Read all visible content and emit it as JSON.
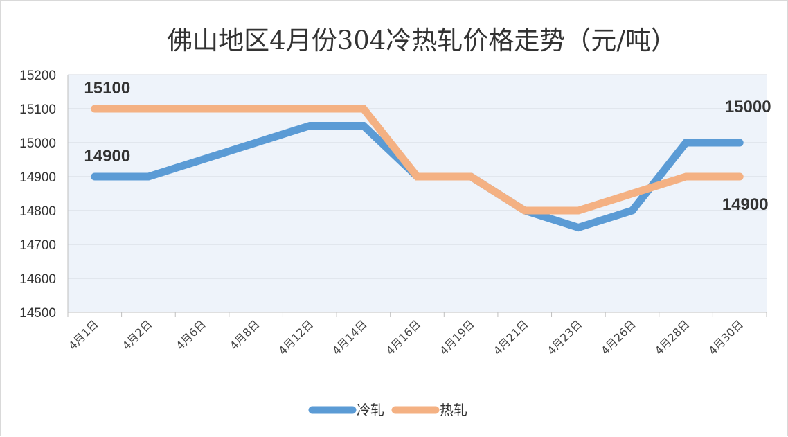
{
  "chart_data": {
    "type": "line",
    "title": "佛山地区4月份304冷热轧价格走势（元/吨）",
    "categories": [
      "4月1日",
      "4月2日",
      "4月6日",
      "4月8日",
      "4月12日",
      "4月14日",
      "4月16日",
      "4月19日",
      "4月21日",
      "4月23日",
      "4月26日",
      "4月28日",
      "4月30日"
    ],
    "ylim": [
      14500,
      15200
    ],
    "yticks": [
      14500,
      14600,
      14700,
      14800,
      14900,
      15000,
      15100,
      15200
    ],
    "grid": true,
    "legend_position": "bottom",
    "series": [
      {
        "name": "冷轧",
        "color": "#5b9bd5",
        "values": [
          14900,
          14900,
          14950,
          15000,
          15050,
          15050,
          14900,
          14900,
          14800,
          14750,
          14800,
          15000,
          15000
        ]
      },
      {
        "name": "热轧",
        "color": "#f4b183",
        "values": [
          15100,
          15100,
          15100,
          15100,
          15100,
          15100,
          14900,
          14900,
          14800,
          14800,
          14850,
          14900,
          14900
        ]
      }
    ],
    "data_labels": [
      {
        "series": 1,
        "index": 0,
        "text": "15100"
      },
      {
        "series": 0,
        "index": 0,
        "text": "14900"
      },
      {
        "series": 0,
        "index": 12,
        "text": "15000"
      },
      {
        "series": 1,
        "index": 12,
        "text": "14900"
      }
    ]
  }
}
